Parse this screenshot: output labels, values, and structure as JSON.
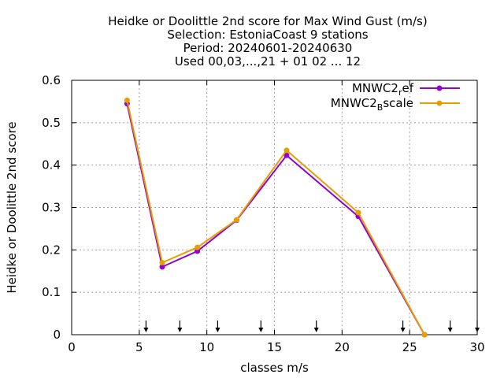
{
  "chart_data": {
    "type": "line",
    "title_lines": [
      "Heidke or Doolittle 2nd score  for Max Wind Gust (m/s)",
      "Selection: EstoniaCoast      9 stations",
      "Period: 20240601-20240630",
      "Used 00,03,...,21 + 01 02 ... 12"
    ],
    "xlabel": "classes m/s",
    "ylabel": "Heidke or Doolittle 2nd score",
    "xlim": [
      0,
      30
    ],
    "ylim": [
      0,
      0.6
    ],
    "xticks": [
      0,
      5,
      10,
      15,
      20,
      25,
      30
    ],
    "xtick_labels": [
      "0",
      "5",
      "10",
      "15",
      "20",
      "25",
      "30"
    ],
    "yticks": [
      0,
      0.1,
      0.2,
      0.3,
      0.4,
      0.5,
      0.6
    ],
    "ytick_labels": [
      "0",
      "0.1",
      "0.2",
      "0.3",
      "0.4",
      "0.5",
      "0.6"
    ],
    "grid": true,
    "legend_position": "top-right",
    "class_arrows_x": [
      5.5,
      8.0,
      10.8,
      14.0,
      18.1,
      24.5,
      28.0,
      30.0
    ],
    "series": [
      {
        "name_main": "MNWC2",
        "name_sub": "r",
        "name_rest": "ef",
        "color": "#9400d3",
        "x": [
          4.1,
          6.7,
          9.3,
          12.2,
          15.9,
          21.2,
          26.1
        ],
        "y": [
          0.545,
          0.16,
          0.197,
          0.27,
          0.423,
          0.279,
          0.0
        ]
      },
      {
        "name_main": "MNWC2",
        "name_sub": "B",
        "name_rest": "scale",
        "color": "#e69f00",
        "x": [
          4.1,
          6.7,
          9.3,
          12.2,
          15.9,
          21.2,
          26.1
        ],
        "y": [
          0.553,
          0.17,
          0.206,
          0.271,
          0.435,
          0.288,
          0.0
        ]
      }
    ]
  }
}
